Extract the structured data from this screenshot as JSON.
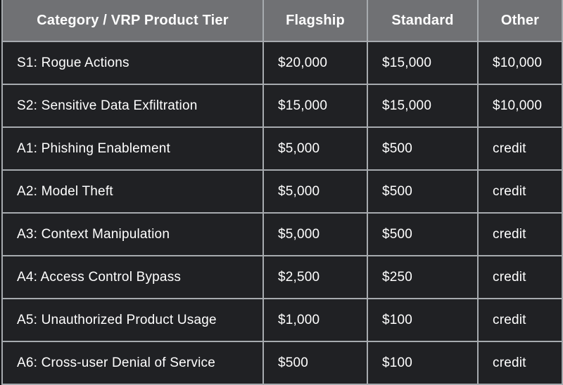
{
  "chart_data": {
    "type": "table",
    "columns": [
      "Category / VRP Product Tier",
      "Flagship",
      "Standard",
      "Other"
    ],
    "rows": [
      [
        "S1: Rogue Actions",
        "$20,000",
        "$15,000",
        "$10,000"
      ],
      [
        "S2: Sensitive Data Exfiltration",
        "$15,000",
        "$15,000",
        "$10,000"
      ],
      [
        "A1: Phishing Enablement",
        "$5,000",
        "$500",
        "credit"
      ],
      [
        "A2: Model Theft",
        "$5,000",
        "$500",
        "credit"
      ],
      [
        "A3: Context Manipulation",
        "$5,000",
        "$500",
        "credit"
      ],
      [
        "A4: Access Control Bypass",
        "$2,500",
        "$250",
        "credit"
      ],
      [
        "A5: Unauthorized Product Usage",
        "$1,000",
        "$100",
        "credit"
      ],
      [
        "A6: Cross-user Denial of Service",
        "$500",
        "$100",
        "credit"
      ]
    ],
    "layout": {
      "header_align": "center",
      "cell_align": "left",
      "grid": true
    }
  },
  "colors": {
    "header_bg": "#707174",
    "cell_bg": "#202124",
    "border": "#a7abaf",
    "text": "#ffffff",
    "page_bg": "#17181a"
  }
}
